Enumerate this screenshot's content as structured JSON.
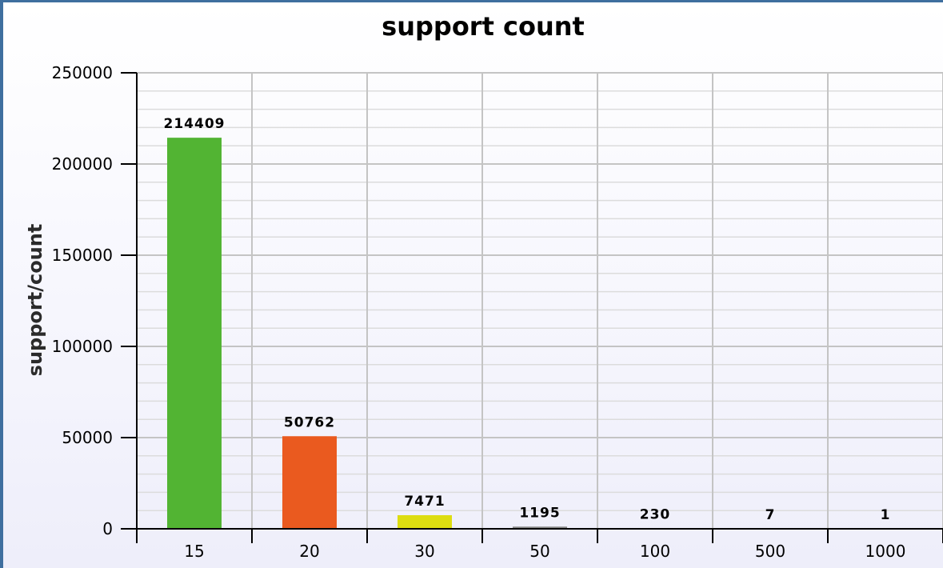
{
  "chart_data": {
    "type": "bar",
    "title": "support count",
    "xlabel": "",
    "ylabel": "support/count",
    "categories": [
      "15",
      "20",
      "30",
      "50",
      "100",
      "500",
      "1000"
    ],
    "values": [
      214409,
      50762,
      7471,
      1195,
      230,
      7,
      1
    ],
    "data_labels": [
      "214409",
      "50762",
      "7471",
      "1195",
      "230",
      "7",
      "1"
    ],
    "bar_colors": [
      "#52b433",
      "#ea5a1f",
      "#dddd10",
      "#888888",
      "#888888",
      "#888888",
      "#888888"
    ],
    "ylim": [
      0,
      250000
    ],
    "yticks": [
      0,
      50000,
      100000,
      150000,
      200000,
      250000
    ],
    "ytick_labels": [
      "0",
      "50000",
      "100000",
      "150000",
      "200000",
      "250000"
    ],
    "grid": true,
    "legend": "none"
  }
}
